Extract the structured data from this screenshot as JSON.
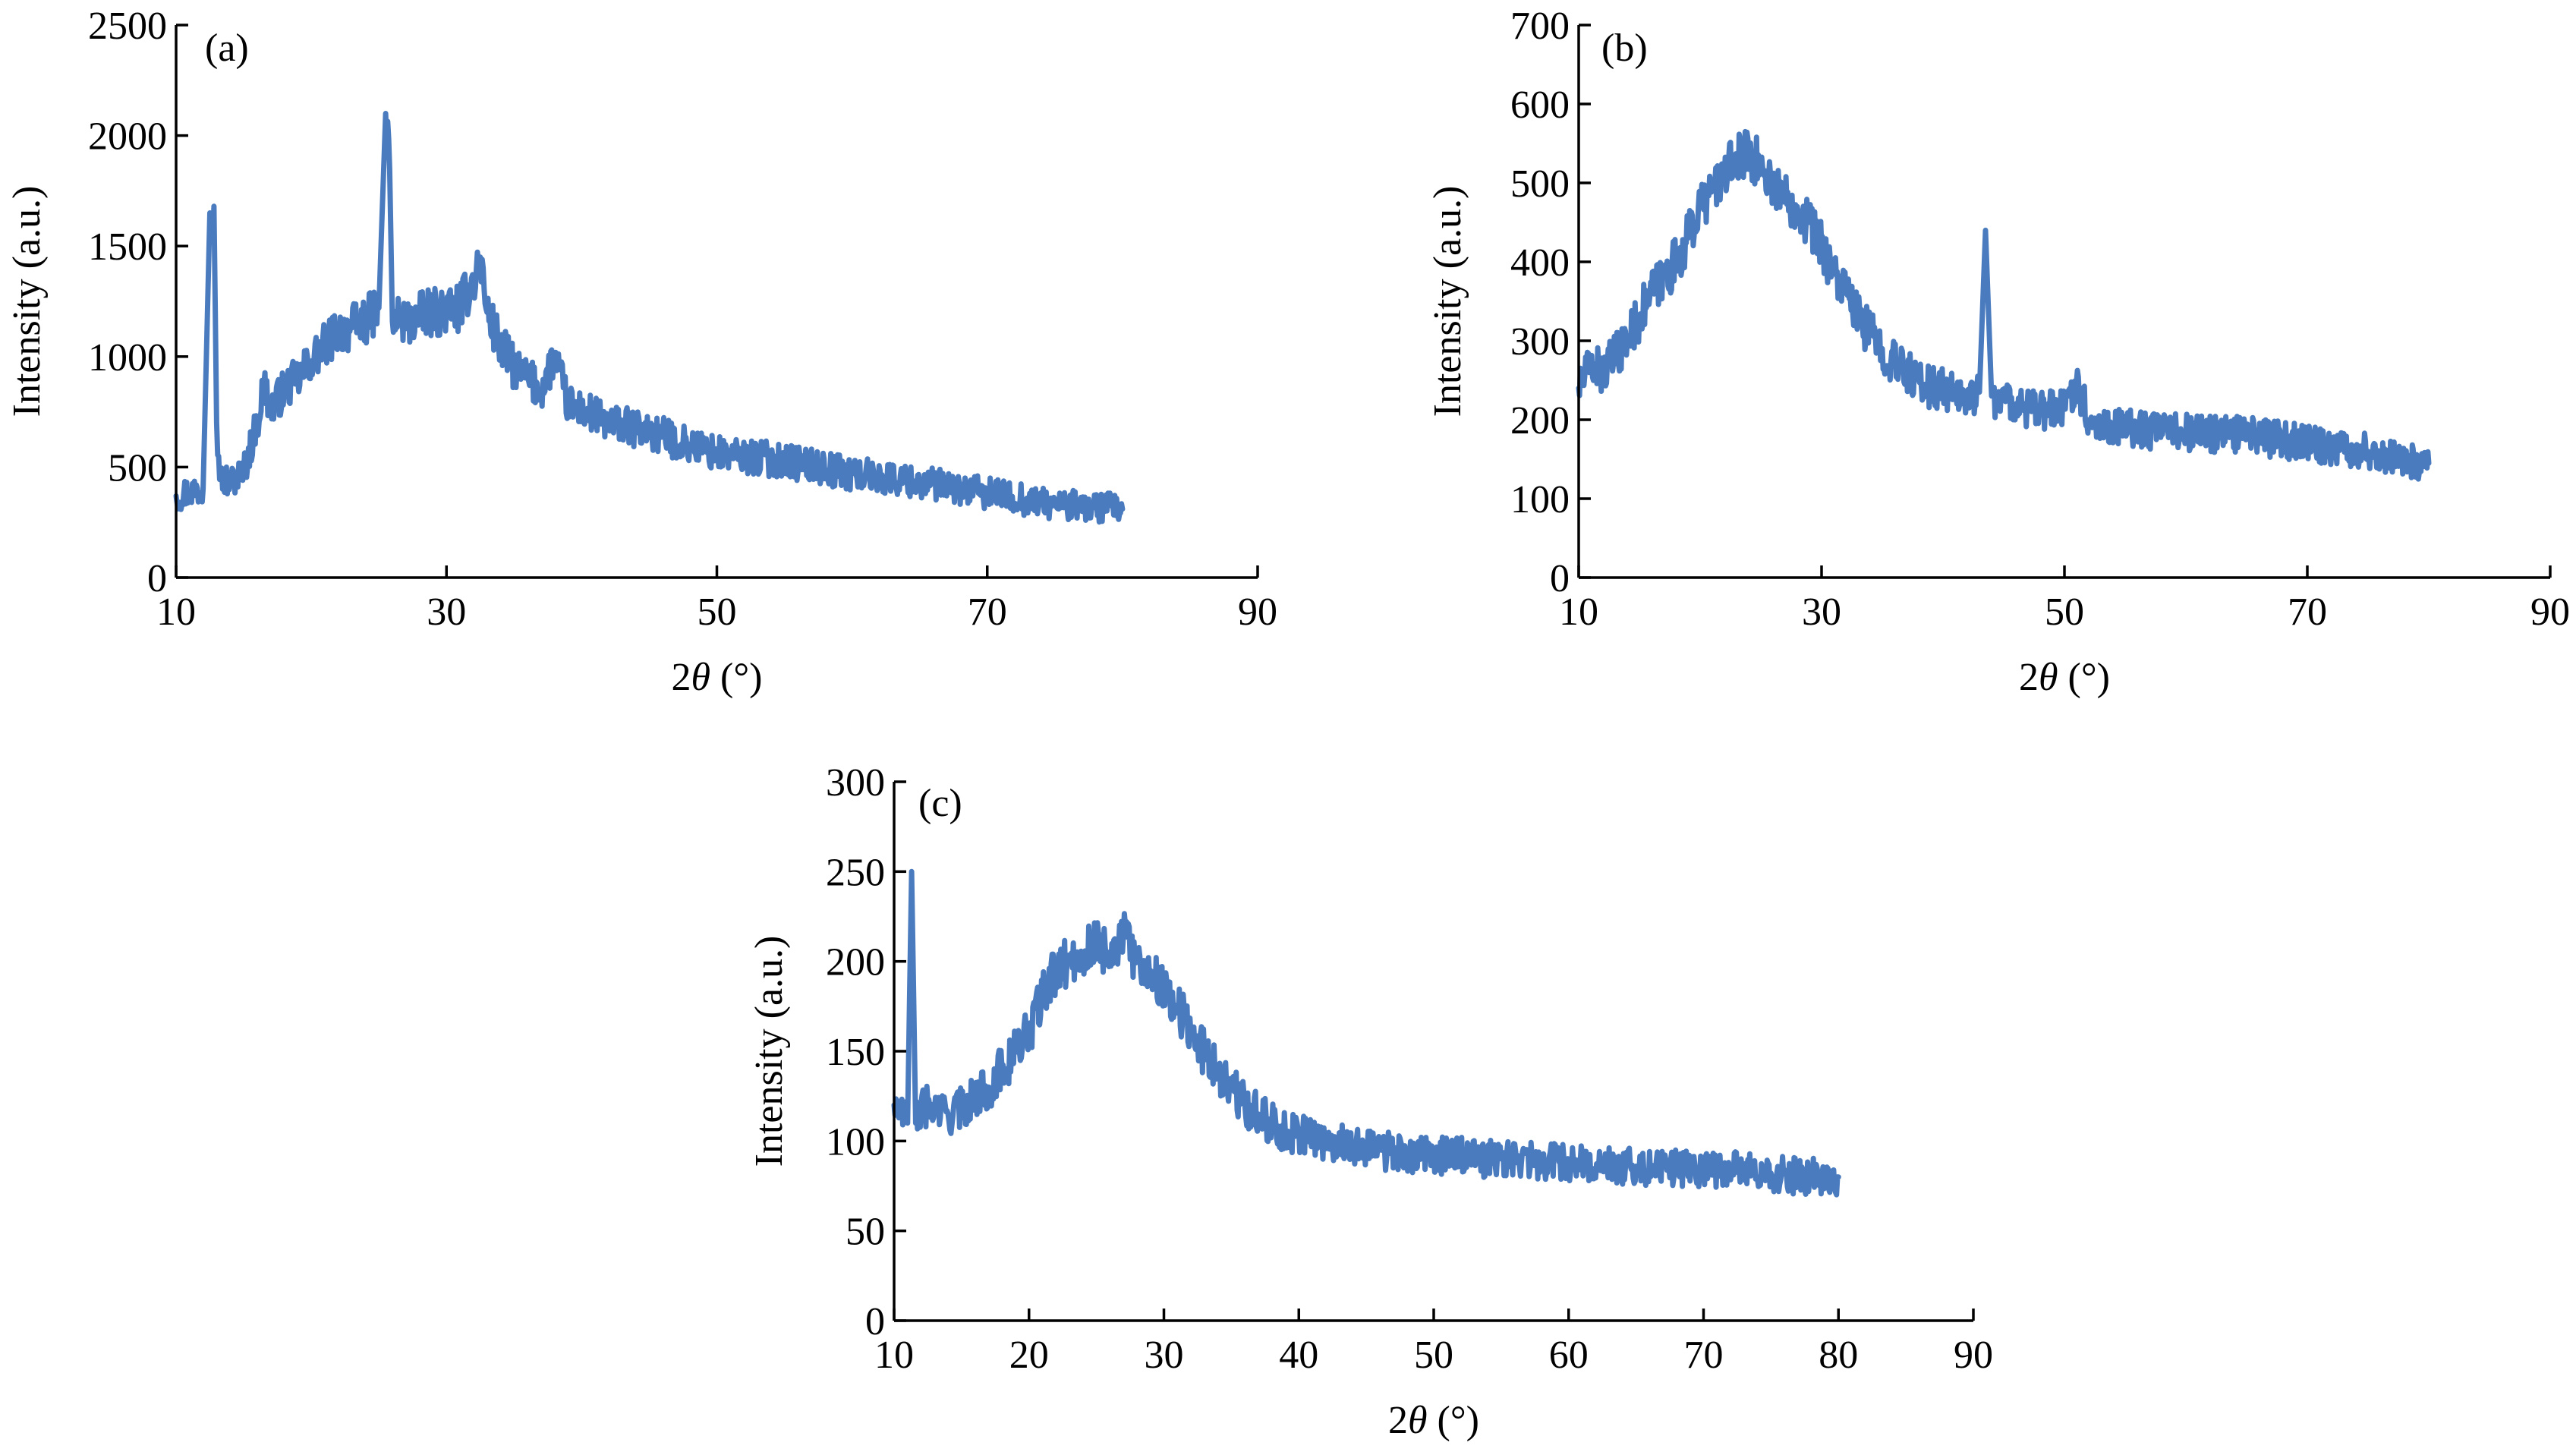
{
  "figure": {
    "line_color": "#4a7bbf",
    "axis_color": "#000000"
  },
  "chart_data": [
    {
      "type": "line",
      "panel_label": "(a)",
      "xlabel": "2θ (°)",
      "ylabel": "Intensity (a.u.)",
      "xlim": [
        10,
        90
      ],
      "ylim": [
        0,
        2500
      ],
      "xticks": [
        10,
        30,
        50,
        70,
        90
      ],
      "yticks": [
        0,
        500,
        1000,
        1500,
        2000,
        2500
      ],
      "grid": false,
      "series": [
        {
          "x": [
            10,
            11,
            12,
            12.5,
            12.8,
            13,
            13.3,
            14,
            15,
            16,
            16.5,
            17,
            18,
            19,
            20,
            21,
            22,
            23,
            24,
            25,
            25.5,
            25.8,
            26,
            26.5,
            27,
            28,
            29,
            30,
            31,
            32,
            32.5,
            33,
            34,
            35,
            36,
            37,
            38,
            39,
            40,
            42,
            45,
            48,
            50,
            55,
            60,
            65,
            70,
            75,
            80
          ],
          "y": [
            370,
            390,
            400,
            1650,
            1680,
            700,
            450,
            430,
            480,
            700,
            880,
            760,
            850,
            900,
            980,
            1050,
            1120,
            1130,
            1160,
            1220,
            2100,
            1850,
            1160,
            1180,
            1150,
            1180,
            1200,
            1210,
            1220,
            1350,
            1450,
            1200,
            1050,
            950,
            900,
            850,
            1000,
            780,
            760,
            700,
            660,
            600,
            560,
            530,
            470,
            430,
            380,
            330,
            310
          ]
        }
      ]
    },
    {
      "type": "line",
      "panel_label": "(b)",
      "xlabel": "2θ (°)",
      "ylabel": "Intensity (a.u.)",
      "xlim": [
        10,
        90
      ],
      "ylim": [
        0,
        700
      ],
      "xticks": [
        10,
        30,
        50,
        70,
        90
      ],
      "yticks": [
        0,
        100,
        200,
        300,
        400,
        500,
        600,
        700
      ],
      "grid": false,
      "series": [
        {
          "x": [
            10,
            11,
            12,
            13,
            14,
            15,
            16,
            17,
            18,
            19,
            20,
            21,
            22,
            23,
            24,
            25,
            26,
            27,
            28,
            29,
            30,
            31,
            32,
            33,
            34,
            35,
            36,
            37,
            38,
            39,
            40,
            41,
            42,
            43,
            43.5,
            44,
            45,
            46,
            48,
            50,
            51,
            52,
            55,
            58,
            60,
            65,
            70,
            75,
            78,
            80
          ],
          "y": [
            240,
            270,
            260,
            280,
            300,
            330,
            360,
            380,
            400,
            430,
            470,
            490,
            510,
            530,
            540,
            520,
            500,
            480,
            470,
            450,
            420,
            390,
            360,
            330,
            310,
            290,
            270,
            260,
            250,
            240,
            240,
            230,
            230,
            235,
            440,
            230,
            225,
            220,
            210,
            215,
            250,
            200,
            190,
            185,
            185,
            180,
            170,
            160,
            150,
            145
          ]
        }
      ]
    },
    {
      "type": "line",
      "panel_label": "(c)",
      "xlabel": "2θ (°)",
      "ylabel": "Intensity (a.u.)",
      "xlim": [
        10,
        90
      ],
      "ylim": [
        0,
        300
      ],
      "xticks": [
        10,
        20,
        30,
        40,
        50,
        60,
        70,
        80,
        90
      ],
      "yticks": [
        0,
        50,
        100,
        150,
        200,
        250,
        300
      ],
      "grid": false,
      "series": [
        {
          "x": [
            10,
            10.5,
            11,
            11.3,
            11.6,
            12,
            13,
            14,
            15,
            16,
            17,
            18,
            19,
            20,
            21,
            22,
            23,
            24,
            25,
            26,
            27,
            28,
            29,
            30,
            31,
            32,
            33,
            34,
            35,
            36,
            37,
            38,
            39,
            40,
            42,
            44,
            46,
            48,
            50,
            55,
            60,
            65,
            70,
            75,
            78,
            80
          ],
          "y": [
            120,
            115,
            110,
            250,
            110,
            120,
            118,
            115,
            118,
            125,
            130,
            140,
            150,
            160,
            180,
            195,
            200,
            205,
            210,
            205,
            215,
            200,
            195,
            185,
            175,
            160,
            150,
            140,
            130,
            120,
            115,
            110,
            105,
            105,
            100,
            98,
            95,
            92,
            92,
            90,
            88,
            86,
            85,
            82,
            80,
            80
          ]
        }
      ]
    }
  ]
}
